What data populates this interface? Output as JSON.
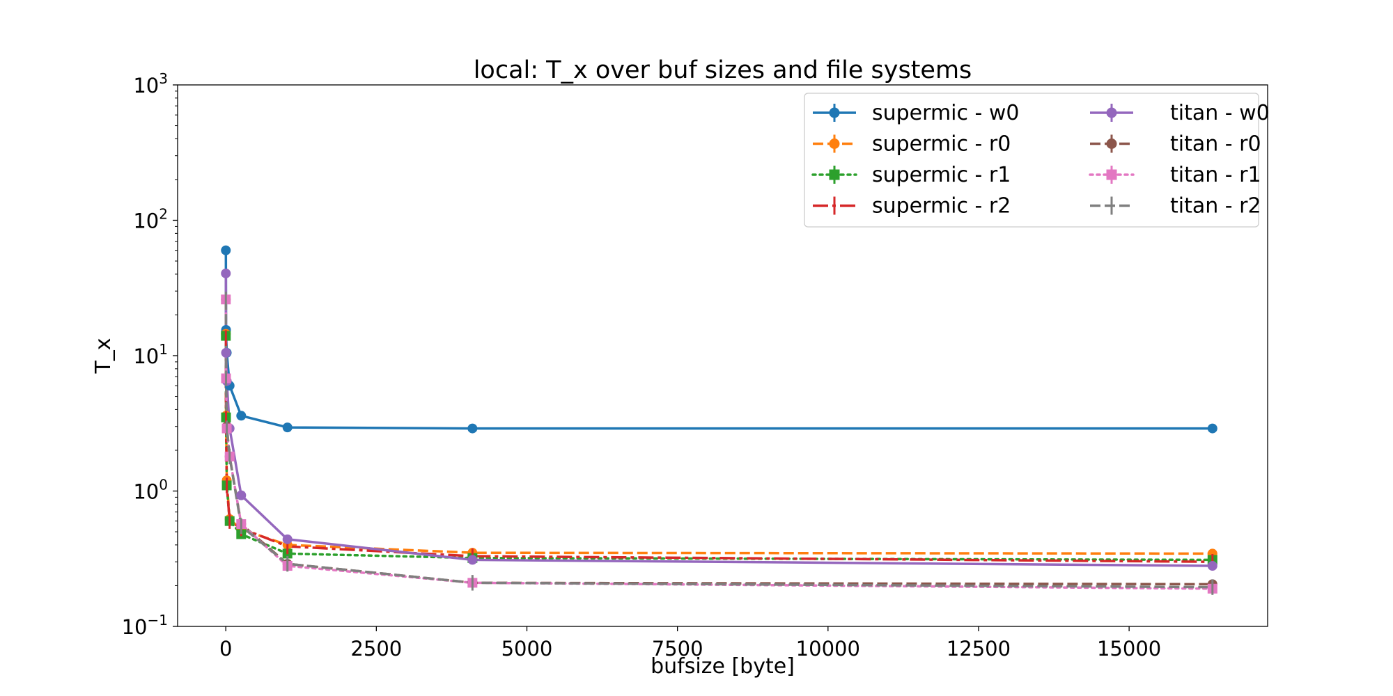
{
  "chart_data": {
    "type": "line",
    "title": "local: T_x over buf sizes and file systems",
    "xlabel": "bufsize [byte]",
    "ylabel": "T_x",
    "xlim": [
      -800,
      17300
    ],
    "ylim": [
      0.1,
      1000
    ],
    "yscale": "log",
    "x_ticks": [
      0,
      2500,
      5000,
      7500,
      10000,
      12500,
      15000
    ],
    "x_tick_labels": [
      "0",
      "2500",
      "5000",
      "7500",
      "10000",
      "12500",
      "15000"
    ],
    "y_ticks": [
      0.1,
      1,
      10,
      100,
      1000
    ],
    "y_tick_labels": [
      [
        "10",
        "−1"
      ],
      [
        "10",
        "0"
      ],
      [
        "10",
        "1"
      ],
      [
        "10",
        "2"
      ],
      [
        "10",
        "3"
      ]
    ],
    "grid": false,
    "legend_position": "top-right",
    "legend_columns": 2,
    "x": [
      1,
      4,
      16,
      64,
      256,
      1024,
      4096,
      16384
    ],
    "series": [
      {
        "name": "supermic - w0",
        "color": "#1f77b4",
        "dash": "solid",
        "marker": "circle",
        "values": [
          60,
          15.5,
          10.5,
          6.0,
          3.6,
          2.95,
          2.9,
          2.9
        ]
      },
      {
        "name": "supermic - r0",
        "color": "#ff7f0e",
        "dash": "dashed",
        "marker": "circle",
        "values": [
          14.5,
          3.6,
          1.2,
          0.62,
          0.52,
          0.4,
          0.35,
          0.345
        ]
      },
      {
        "name": "supermic - r1",
        "color": "#2ca02c",
        "dash": "dotted",
        "marker": "square",
        "values": [
          14.0,
          3.5,
          1.1,
          0.6,
          0.48,
          0.345,
          0.32,
          0.31
        ]
      },
      {
        "name": "supermic - r2",
        "color": "#d62728",
        "dash": "dashdot",
        "marker": "vline",
        "values": [
          13.5,
          3.4,
          1.1,
          0.6,
          0.53,
          0.39,
          0.33,
          0.3
        ]
      },
      {
        "name": "titan - w0",
        "color": "#9467bd",
        "dash": "solid",
        "marker": "circle",
        "values": [
          40.5,
          10.5,
          6.5,
          2.9,
          0.93,
          0.44,
          0.31,
          0.28
        ]
      },
      {
        "name": "titan - r0",
        "color": "#8c564b",
        "dash": "dashed",
        "marker": "circle",
        "values": [
          26,
          6.8,
          3.0,
          1.8,
          0.57,
          0.29,
          0.21,
          0.205
        ]
      },
      {
        "name": "titan - r1",
        "color": "#e377c2",
        "dash": "dotted",
        "marker": "square",
        "values": [
          26,
          6.8,
          2.9,
          1.8,
          0.57,
          0.28,
          0.21,
          0.19
        ]
      },
      {
        "name": "titan - r2",
        "color": "#7f7f7f",
        "dash": "dashed",
        "marker": "vline",
        "values": [
          26,
          6.8,
          2.9,
          1.8,
          0.55,
          0.29,
          0.21,
          0.195
        ]
      }
    ]
  }
}
